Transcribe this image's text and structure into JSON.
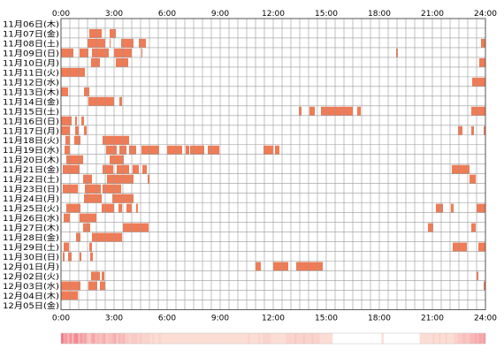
{
  "chart_data": {
    "type": "heatmap",
    "title": "",
    "xlabel": "",
    "ylabel": "",
    "x_ticks": [
      "0:00",
      "3:00",
      "6:00",
      "9:00",
      "12:00",
      "15:00",
      "18:00",
      "21:00",
      "24:00"
    ],
    "x_range_hours": [
      0,
      24
    ],
    "grid": true,
    "colors": {
      "activity": "#f07b55",
      "activity_dark": "#ef5b4d",
      "grid": "#999999",
      "frame": "#555555",
      "heat_low": "#fde7dc",
      "heat_high": "#f07080"
    },
    "rows": [
      {
        "label": "11月06日(木)",
        "segments": []
      },
      {
        "label": "11月07日(金)",
        "segments": [
          [
            1.6,
            2.3
          ],
          [
            2.75,
            3.1
          ]
        ]
      },
      {
        "label": "11月08日(土)",
        "segments": [
          [
            1.5,
            2.5
          ],
          [
            2.75,
            2.8
          ],
          [
            3.4,
            4.1
          ],
          [
            4.4,
            4.8
          ],
          [
            23.75,
            24.0
          ]
        ]
      },
      {
        "label": "11月09日(日)",
        "segments": [
          [
            0,
            0.7
          ],
          [
            1.05,
            1.55
          ],
          [
            1.75,
            2.7
          ],
          [
            3.0,
            4.0
          ],
          [
            4.55,
            4.6
          ],
          [
            18.95,
            19.05
          ]
        ]
      },
      {
        "label": "11月10日(月)",
        "segments": [
          [
            1.7,
            2.2
          ],
          [
            3.1,
            3.8
          ],
          [
            23.65,
            24.0
          ]
        ]
      },
      {
        "label": "11月11日(火)",
        "segments": [
          [
            0,
            1.35
          ]
        ]
      },
      {
        "label": "11月12日(水)",
        "segments": [
          [
            23.25,
            24.0
          ]
        ]
      },
      {
        "label": "11月13日(木)",
        "segments": [
          [
            0,
            0.4
          ],
          [
            1.3,
            1.6
          ]
        ]
      },
      {
        "label": "11月14日(金)",
        "segments": [
          [
            1.55,
            3.0
          ],
          [
            3.3,
            3.45
          ]
        ]
      },
      {
        "label": "11月15日(土)",
        "segments": [
          [
            13.45,
            13.6
          ],
          [
            14.05,
            14.35
          ],
          [
            14.7,
            16.5
          ],
          [
            16.75,
            16.95
          ],
          [
            23.2,
            24.0
          ]
        ]
      },
      {
        "label": "11月16日(日)",
        "segments": [
          [
            0,
            0.6
          ],
          [
            0.8,
            0.9
          ],
          [
            1.15,
            1.3
          ]
        ]
      },
      {
        "label": "11月17日(月)",
        "segments": [
          [
            0,
            0.5
          ],
          [
            0.8,
            1.0
          ],
          [
            1.3,
            1.45
          ],
          [
            22.45,
            22.7
          ],
          [
            23.2,
            23.35
          ],
          [
            23.9,
            24.0
          ]
        ]
      },
      {
        "label": "11月18日(火)",
        "segments": [
          [
            0.25,
            0.5
          ],
          [
            0.75,
            1.1
          ],
          [
            2.35,
            3.85
          ]
        ]
      },
      {
        "label": "11月19日(水)",
        "segments": [
          [
            0.2,
            0.5
          ],
          [
            2.55,
            3.15
          ],
          [
            3.3,
            3.7
          ],
          [
            3.85,
            4.25
          ],
          [
            4.55,
            5.55
          ],
          [
            6.0,
            6.85
          ],
          [
            7.05,
            7.25
          ],
          [
            7.3,
            8.1
          ],
          [
            8.3,
            8.95
          ],
          [
            11.45,
            12.0
          ],
          [
            12.1,
            12.35
          ]
        ]
      },
      {
        "label": "11月20日(木)",
        "segments": [
          [
            0.3,
            1.25
          ],
          [
            2.75,
            3.55
          ]
        ]
      },
      {
        "label": "11月21日(金)",
        "segments": [
          [
            0.1,
            1.05
          ],
          [
            2.35,
            2.95
          ],
          [
            3.15,
            3.85
          ],
          [
            4.05,
            4.4
          ],
          [
            4.6,
            4.85
          ],
          [
            22.1,
            23.1
          ]
        ]
      },
      {
        "label": "11月22日(土)",
        "segments": [
          [
            1.25,
            1.75
          ],
          [
            2.6,
            4.1
          ],
          [
            4.9,
            5.0
          ],
          [
            23.1,
            23.45
          ]
        ]
      },
      {
        "label": "11月23日(日)",
        "segments": [
          [
            0.1,
            0.95
          ],
          [
            1.35,
            2.25
          ],
          [
            2.35,
            3.4
          ]
        ]
      },
      {
        "label": "11月24日(月)",
        "segments": [
          [
            1.3,
            2.3
          ],
          [
            2.9,
            4.1
          ]
        ]
      },
      {
        "label": "11月25日(火)",
        "segments": [
          [
            0.3,
            1.1
          ],
          [
            2.3,
            3.0
          ],
          [
            3.25,
            3.45
          ],
          [
            3.7,
            4.0
          ],
          [
            4.25,
            4.35
          ],
          [
            21.2,
            21.6
          ],
          [
            22.05,
            22.2
          ],
          [
            23.5,
            24.0
          ]
        ]
      },
      {
        "label": "11月26日(水)",
        "segments": [
          [
            0.15,
            0.5
          ],
          [
            1.05,
            2.0
          ]
        ]
      },
      {
        "label": "11月27日(木)",
        "segments": [
          [
            1.25,
            1.65
          ],
          [
            3.5,
            4.95
          ],
          [
            20.75,
            21.05
          ],
          [
            23.2,
            23.45
          ]
        ]
      },
      {
        "label": "11月28日(金)",
        "segments": [
          [
            0.85,
            1.1
          ],
          [
            1.75,
            3.45
          ]
        ]
      },
      {
        "label": "11月29日(土)",
        "segments": [
          [
            0.15,
            0.45
          ],
          [
            1.6,
            1.75
          ],
          [
            22.15,
            22.95
          ],
          [
            23.6,
            24.0
          ]
        ]
      },
      {
        "label": "11月30日(日)",
        "segments": [
          [
            0.1,
            0.2
          ],
          [
            0.4,
            0.6
          ],
          [
            1.05,
            1.15
          ],
          [
            1.65,
            1.8
          ]
        ]
      },
      {
        "label": "12月01日(月)",
        "segments": [
          [
            11.0,
            11.3
          ],
          [
            12.0,
            12.85
          ],
          [
            13.3,
            14.8
          ]
        ]
      },
      {
        "label": "12月02日(火)",
        "segments": [
          [
            1.7,
            2.2
          ],
          [
            2.3,
            2.45
          ],
          [
            23.5,
            23.6
          ]
        ]
      },
      {
        "label": "12月03日(水)",
        "segments": [
          [
            0,
            1.1
          ],
          [
            1.55,
            2.05
          ],
          [
            2.2,
            2.5
          ],
          [
            23.9,
            24.0
          ]
        ]
      },
      {
        "label": "12月04日(木)",
        "segments": [
          [
            0,
            0.95
          ]
        ]
      },
      {
        "label": "12月05日(金)",
        "segments": []
      }
    ],
    "heat_strip_counts": [
      12,
      7,
      8,
      5,
      9,
      5,
      9,
      10,
      5,
      8,
      6,
      7,
      4,
      3,
      6,
      7,
      4,
      5,
      4,
      5,
      6,
      3,
      4,
      4,
      5,
      6,
      3,
      5,
      4,
      5,
      3,
      3,
      2,
      3,
      3,
      3,
      2,
      3,
      2,
      2,
      2,
      2,
      1,
      2,
      1,
      1,
      2,
      1,
      1,
      1,
      1,
      1,
      1,
      1,
      1,
      1,
      1,
      1,
      1,
      1,
      1,
      1,
      1,
      1,
      1,
      1,
      1,
      1,
      1,
      1,
      1,
      1,
      1,
      1,
      1,
      1,
      1,
      1,
      1,
      1,
      1,
      1,
      1,
      1,
      1,
      1,
      1,
      1,
      2,
      1,
      1,
      1,
      1,
      2,
      1,
      2,
      2,
      2,
      2,
      1,
      1,
      1,
      1,
      1,
      1,
      1,
      2,
      2,
      2,
      2,
      3,
      2,
      2,
      2,
      3,
      2,
      2,
      2,
      3,
      2,
      2,
      2,
      1,
      1,
      1,
      1,
      1,
      1,
      0,
      0,
      0,
      0,
      0,
      0,
      0,
      0,
      0,
      0,
      0,
      0,
      0,
      0,
      0,
      0,
      0,
      0,
      0,
      0,
      0,
      0,
      0,
      1,
      0,
      0,
      0,
      0,
      0,
      0,
      0,
      0,
      0,
      0,
      0,
      0,
      0,
      0,
      0,
      0,
      0,
      1,
      1,
      1,
      1,
      1,
      1,
      2,
      1,
      1,
      2,
      1,
      1,
      2,
      1,
      1,
      1,
      2,
      2,
      3,
      3,
      4,
      4,
      3,
      4,
      5,
      5,
      6,
      5,
      7,
      6,
      8
    ]
  }
}
